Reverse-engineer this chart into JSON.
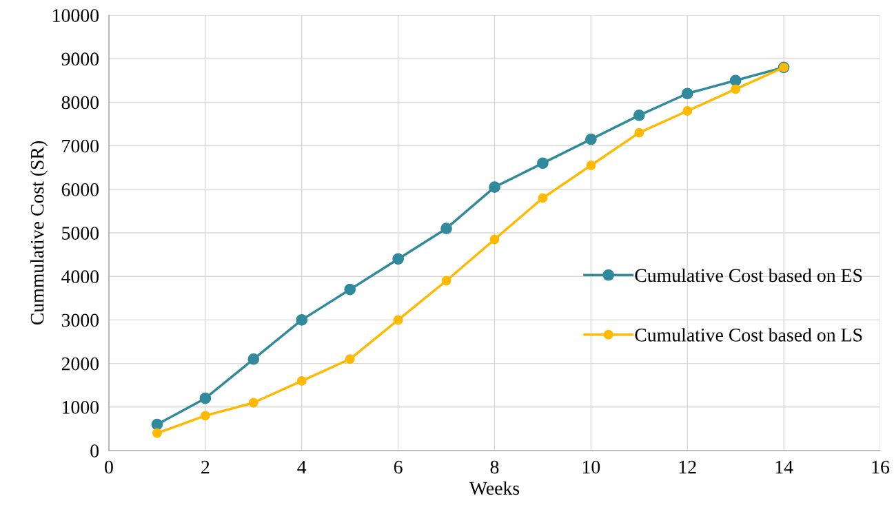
{
  "chart_data": {
    "type": "line",
    "xlabel": "Weeks",
    "ylabel": "Cummulative Cost (SR)",
    "series": [
      {
        "name": "Cumulative Cost based on ES",
        "color": "#31899c",
        "x": [
          1,
          2,
          3,
          4,
          5,
          6,
          7,
          8,
          9,
          10,
          11,
          12,
          13,
          14
        ],
        "values": [
          600,
          1200,
          2100,
          3000,
          3700,
          4400,
          5100,
          6050,
          6600,
          7150,
          7700,
          8200,
          8500,
          8800
        ]
      },
      {
        "name": "Cumulative Cost based on LS",
        "color": "#ffb900",
        "x": [
          1,
          2,
          3,
          4,
          5,
          6,
          7,
          8,
          9,
          10,
          11,
          12,
          13,
          14
        ],
        "values": [
          400,
          800,
          1100,
          1600,
          2100,
          3000,
          3900,
          4850,
          5800,
          6550,
          7300,
          7800,
          8300,
          8800
        ]
      }
    ],
    "xlim": [
      0,
      16
    ],
    "xticks": [
      0,
      2,
      4,
      6,
      8,
      10,
      12,
      14,
      16
    ],
    "ylim": [
      0,
      10000
    ],
    "yticks": [
      0,
      1000,
      2000,
      3000,
      4000,
      5000,
      6000,
      7000,
      8000,
      9000,
      10000
    ],
    "grid": true,
    "legend": "right",
    "marker": "circle",
    "line_style": "solid"
  }
}
